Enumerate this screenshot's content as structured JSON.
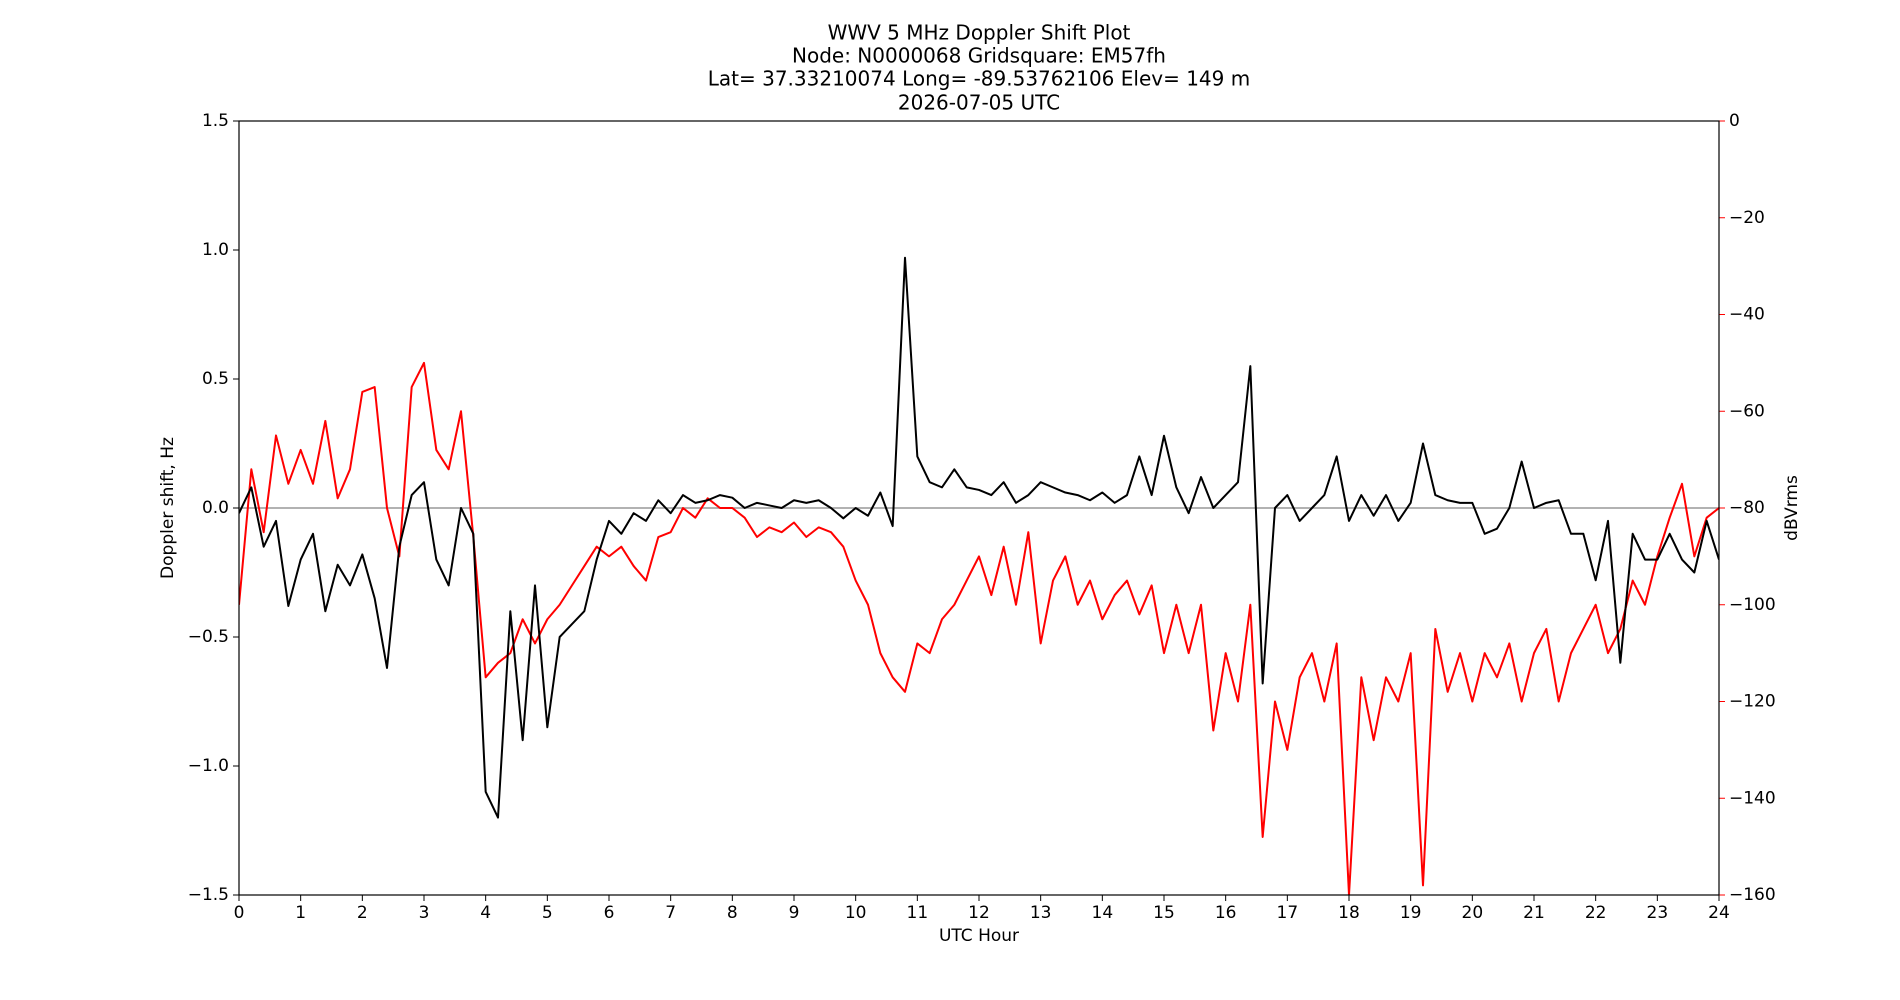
{
  "chart_data": {
    "type": "line",
    "title_lines": [
      "WWV 5 MHz Doppler Shift Plot",
      "Node:  N0000068     Gridsquare:  EM57fh",
      "Lat= 37.33210074    Long= -89.53762106    Elev= 149 m",
      "2026-07-05  UTC"
    ],
    "xlabel": "UTC Hour",
    "ylabel": "Doppler shift, Hz",
    "y2label": "dBVrms",
    "y2color": "#ff0000",
    "x": [
      0,
      0.2,
      0.4,
      0.6,
      0.8,
      1,
      1.2,
      1.4,
      1.6,
      1.8,
      2,
      2.2,
      2.4,
      2.6,
      2.8,
      3,
      3.2,
      3.4,
      3.6,
      3.8,
      4,
      4.2,
      4.4,
      4.6,
      4.8,
      5,
      5.2,
      5.4,
      5.6,
      5.8,
      6,
      6.2,
      6.4,
      6.6,
      6.8,
      7,
      7.2,
      7.4,
      7.6,
      7.8,
      8,
      8.2,
      8.4,
      8.6,
      8.8,
      9,
      9.2,
      9.4,
      9.6,
      9.8,
      10,
      10.2,
      10.4,
      10.6,
      10.8,
      11,
      11.2,
      11.4,
      11.6,
      11.8,
      12,
      12.2,
      12.4,
      12.6,
      12.8,
      13,
      13.2,
      13.4,
      13.6,
      13.8,
      14,
      14.2,
      14.4,
      14.6,
      14.8,
      15,
      15.2,
      15.4,
      15.6,
      15.8,
      16,
      16.2,
      16.4,
      16.6,
      16.8,
      17,
      17.2,
      17.4,
      17.6,
      17.8,
      18,
      18.2,
      18.4,
      18.6,
      18.8,
      19,
      19.2,
      19.4,
      19.6,
      19.8,
      20,
      20.2,
      20.4,
      20.6,
      20.8,
      21,
      21.2,
      21.4,
      21.6,
      21.8,
      22,
      22.2,
      22.4,
      22.6,
      22.8,
      23,
      23.2,
      23.4,
      23.6,
      23.8,
      24
    ],
    "series": [
      {
        "color": "#000000",
        "axis": "y",
        "values": [
          -0.02,
          0.08,
          -0.15,
          -0.05,
          -0.38,
          -0.2,
          -0.1,
          -0.4,
          -0.22,
          -0.3,
          -0.18,
          -0.35,
          -0.62,
          -0.15,
          0.05,
          0.1,
          -0.2,
          -0.3,
          0.0,
          -0.1,
          -1.1,
          -1.2,
          -0.4,
          -0.9,
          -0.3,
          -0.85,
          -0.5,
          -0.45,
          -0.4,
          -0.2,
          -0.05,
          -0.1,
          -0.02,
          -0.05,
          0.03,
          -0.02,
          0.05,
          0.02,
          0.03,
          0.05,
          0.04,
          0.0,
          0.02,
          0.01,
          0.0,
          0.03,
          0.02,
          0.03,
          0.0,
          -0.04,
          0.0,
          -0.03,
          0.06,
          -0.07,
          0.97,
          0.2,
          0.1,
          0.08,
          0.15,
          0.08,
          0.07,
          0.05,
          0.1,
          0.02,
          0.05,
          0.1,
          0.08,
          0.06,
          0.05,
          0.03,
          0.06,
          0.02,
          0.05,
          0.2,
          0.05,
          0.28,
          0.08,
          -0.02,
          0.12,
          0.0,
          0.05,
          0.1,
          0.55,
          -0.68,
          0.0,
          0.05,
          -0.05,
          0.0,
          0.05,
          0.2,
          -0.05,
          0.05,
          -0.03,
          0.05,
          -0.05,
          0.02,
          0.25,
          0.05,
          0.03,
          0.02,
          0.02,
          -0.1,
          -0.08,
          0.0,
          0.18,
          0.0,
          0.02,
          0.03,
          -0.1,
          -0.1,
          -0.28,
          -0.05,
          -0.6,
          -0.1,
          -0.2,
          -0.2,
          -0.1,
          -0.2,
          -0.25,
          -0.05,
          -0.2
        ]
      },
      {
        "color": "#ff0000",
        "axis": "y2",
        "values": [
          -100,
          -72,
          -85,
          -65,
          -75,
          -68,
          -75,
          -62,
          -78,
          -72,
          -56,
          -55,
          -80,
          -90,
          -55,
          -50,
          -68,
          -72,
          -60,
          -86,
          -115,
          -112,
          -110,
          -103,
          -108,
          -103,
          -100,
          -96,
          -92,
          -88,
          -90,
          -88,
          -92,
          -95,
          -86,
          -85,
          -80,
          -82,
          -78,
          -80,
          -80,
          -82,
          -86,
          -84,
          -85,
          -83,
          -86,
          -84,
          -85,
          -88,
          -95,
          -100,
          -110,
          -115,
          -118,
          -108,
          -110,
          -103,
          -100,
          -95,
          -90,
          -98,
          -88,
          -100,
          -85,
          -108,
          -95,
          -90,
          -100,
          -95,
          -103,
          -98,
          -95,
          -102,
          -96,
          -110,
          -100,
          -110,
          -100,
          -126,
          -110,
          -120,
          -100,
          -148,
          -120,
          -130,
          -115,
          -110,
          -120,
          -108,
          -160,
          -115,
          -128,
          -115,
          -120,
          -110,
          -158,
          -105,
          -118,
          -110,
          -120,
          -110,
          -115,
          -108,
          -120,
          -110,
          -105,
          -120,
          -110,
          -105,
          -100,
          -110,
          -105,
          -95,
          -100,
          -90,
          -82,
          -75,
          -90,
          -82,
          -80
        ]
      }
    ],
    "hline": 0,
    "xlim": [
      0,
      24
    ],
    "xticks": [
      0,
      1,
      2,
      3,
      4,
      5,
      6,
      7,
      8,
      9,
      10,
      11,
      12,
      13,
      14,
      15,
      16,
      17,
      18,
      19,
      20,
      21,
      22,
      23,
      24
    ],
    "ylim": [
      -1.5,
      1.5
    ],
    "yticks": [
      {
        "value": -1.5,
        "label": "−1.5"
      },
      {
        "value": -1.0,
        "label": "−1.0"
      },
      {
        "value": -0.5,
        "label": "−0.5"
      },
      {
        "value": 0,
        "label": "0.0"
      },
      0.5,
      {
        "value": 1.0,
        "label": "1.0"
      },
      1.5
    ],
    "y2lim": [
      -160,
      0
    ],
    "y2ticks": [
      {
        "value": -160,
        "label": "−160"
      },
      {
        "value": -140,
        "label": "−140"
      },
      {
        "value": -120,
        "label": "−120"
      },
      {
        "value": -100,
        "label": "−100"
      },
      {
        "value": -80,
        "label": "−80"
      },
      {
        "value": -60,
        "label": "−60"
      },
      {
        "value": -40,
        "label": "−40"
      },
      {
        "value": -20,
        "label": "−20"
      },
      0
    ]
  }
}
